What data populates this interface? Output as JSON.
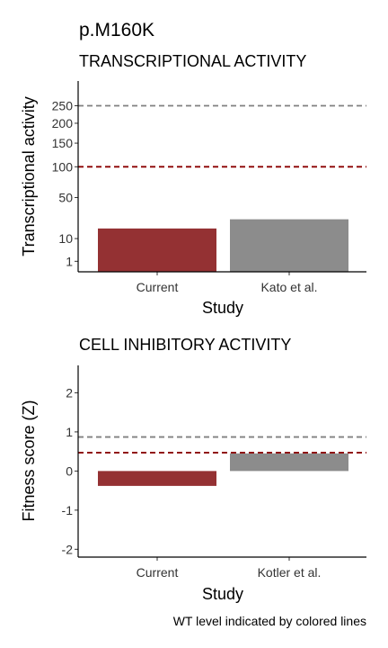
{
  "title": "p.M160K",
  "caption": "WT level indicated by colored lines",
  "colors": {
    "current": "#943133",
    "other": "#8C8C8C",
    "wt_current_line": "#8B0000",
    "wt_other_line": "#808080"
  },
  "chart_data": [
    {
      "type": "bar",
      "title": "TRANSCRIPTIONAL ACTIVITY",
      "xlabel": "Study",
      "ylabel": "Transcriptional activity",
      "scale": "sqrt",
      "ylim": [
        0,
        330
      ],
      "baseline": 0,
      "yticks": [
        1,
        10,
        50,
        100,
        150,
        200,
        250
      ],
      "categories": [
        "Current",
        "Kato et al."
      ],
      "values": [
        17,
        25
      ],
      "reference_lines": [
        {
          "value": 100,
          "color": "#8B0000",
          "style": "dashed"
        },
        {
          "value": 250,
          "color": "#808080",
          "style": "dashed"
        }
      ]
    },
    {
      "type": "bar",
      "title": "CELL INHIBITORY ACTIVITY",
      "xlabel": "Study",
      "ylabel": "Fitness score (Z)",
      "scale": "linear",
      "ylim": [
        -2.2,
        2.7
      ],
      "baseline": 0,
      "yticks": [
        -2,
        -1,
        0,
        1,
        2
      ],
      "categories": [
        "Current",
        "Kotler et al."
      ],
      "values": [
        -0.38,
        0.45
      ],
      "reference_lines": [
        {
          "value": 0.47,
          "color": "#8B0000",
          "style": "dashed"
        },
        {
          "value": 0.87,
          "color": "#808080",
          "style": "dashed"
        }
      ]
    }
  ]
}
